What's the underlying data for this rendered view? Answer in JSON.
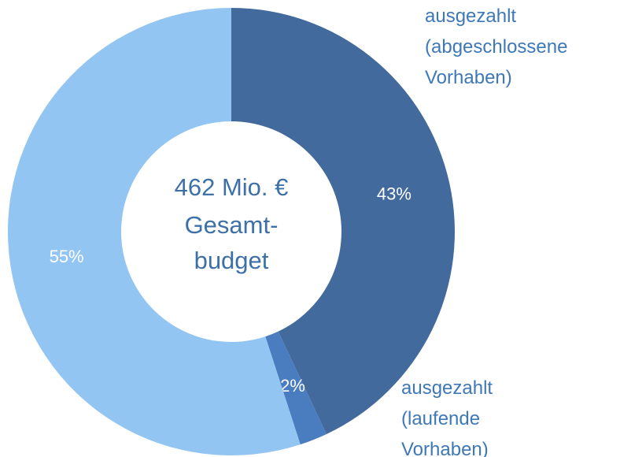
{
  "chart_data": {
    "type": "donut",
    "categories": [
      "ausgezahlt (abgeschlossene Vorhaben)",
      "ausgezahlt (laufende Vorhaben)",
      null
    ],
    "values": [
      43,
      2,
      55
    ],
    "value_labels": [
      "43%",
      "2%",
      "55%"
    ],
    "colors": [
      "#426a9c",
      "#4a7dbf",
      "#93c5f3"
    ],
    "center_text": [
      "462 Mio. €",
      "Gesamt-",
      "budget"
    ]
  }
}
